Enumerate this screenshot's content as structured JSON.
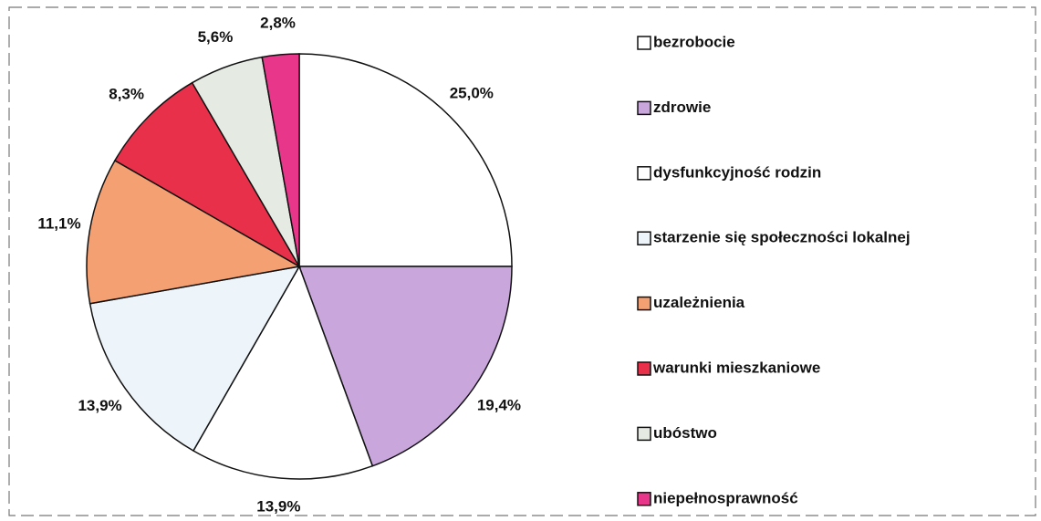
{
  "chart_data": {
    "type": "pie",
    "categories": [
      "bezrobocie",
      "zdrowie",
      "dysfunkcyjność rodzin",
      "starzenie się społeczności lokalnej",
      "uzależnienia",
      "warunki mieszkaniowe",
      "ubóstwo",
      "niepełnosprawność"
    ],
    "values": [
      25.0,
      19.4,
      13.9,
      13.9,
      11.1,
      8.3,
      5.6,
      2.8
    ],
    "value_labels": [
      "25,0%",
      "19,4%",
      "13,9%",
      "13,9%",
      "11,1%",
      "8,3%",
      "5,6%",
      "2,8%"
    ],
    "colors": [
      "#ffffff",
      "#c9a6dc",
      "#ffffff",
      "#eef5fa",
      "#f4a072",
      "#e8304a",
      "#e5ebe3",
      "#e8368a"
    ],
    "legend": "right"
  }
}
